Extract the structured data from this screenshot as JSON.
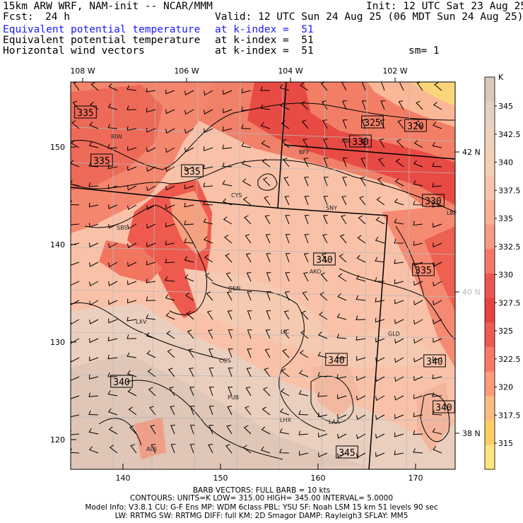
{
  "header": {
    "model": "15km ARW WRF, NAM-init -- NCAR/MMM",
    "init": "Init: 12 UTC Sat 23 Aug 25",
    "fcst_label": "Fcst:",
    "fcst_value": "24 h",
    "valid": "Valid: 12 UTC Sun 24 Aug 25 (06 MDT Sun 24 Aug 25)",
    "fields": [
      {
        "name": "Equivalent potential temperature",
        "level": "at k-index =  51"
      },
      {
        "name": "Equivalent potential temperature",
        "level": "at k-index =  51"
      },
      {
        "name": "Horizontal wind vectors",
        "level": "at k-index =  51"
      }
    ],
    "smoothing": "sm= 1"
  },
  "colors": {
    "accent_text": "#1a1aff",
    "scale": [
      "#ffe680",
      "#ffcf66",
      "#ffbc80",
      "#ff9c7a",
      "#f77a66",
      "#ef5a4f",
      "#e64240",
      "#ee5552",
      "#f47a66",
      "#f79a84",
      "#f9b096",
      "#fbc4a8",
      "#f6d0b4",
      "#efd2bc",
      "#e6d0c0",
      "#dcc8b8"
    ]
  },
  "colorbar": {
    "unit": "K",
    "labels": [
      "345",
      "342.5",
      "340",
      "337.5",
      "335",
      "332.5",
      "330",
      "327.5",
      "325",
      "322.5",
      "320",
      "317.5",
      "315"
    ]
  },
  "axes": {
    "top_lon_labels": [
      "108 W",
      "106 W",
      "104 W",
      "102 W"
    ],
    "bottom_x_labels": [
      "140",
      "150",
      "160",
      "170"
    ],
    "left_y_labels": [
      "150",
      "140",
      "130",
      "120"
    ],
    "right_lat_labels": [
      "42 N",
      "40 N",
      "38 N"
    ]
  },
  "contour_labels": [
    "335",
    "335",
    "335",
    "325",
    "330",
    "320",
    "330",
    "340",
    "335",
    "340",
    "340",
    "340",
    "340",
    "345"
  ],
  "stations": [
    "RIW",
    "BFF",
    "AIA",
    "CYS",
    "SNY",
    "LBF",
    "SBS",
    "AKO",
    "GLD",
    "DEN",
    "LIC",
    "LXV",
    "COS",
    "PUB",
    "LHX",
    "LAA",
    "ALS"
  ],
  "footer": {
    "barb": "BARB VECTORS:  FULL BARB = 10 kts",
    "contours": "CONTOURS:  UNITS=K  LOW=  315.00      HIGH=  345.00      INTERVAL=    5.0000",
    "model_info_1": "Model Info: V3.8.1     CU: G-F Ens MP: WDM 6class  PBL: YSU        SF: Noah LSM     15 km    51 levels    90 sec",
    "model_info_2": "LW: RRTMG   SW: RRTMG  DIFF: full   KM: 2D Smagor DAMP: Rayleigh3  SFLAY: MM5"
  }
}
